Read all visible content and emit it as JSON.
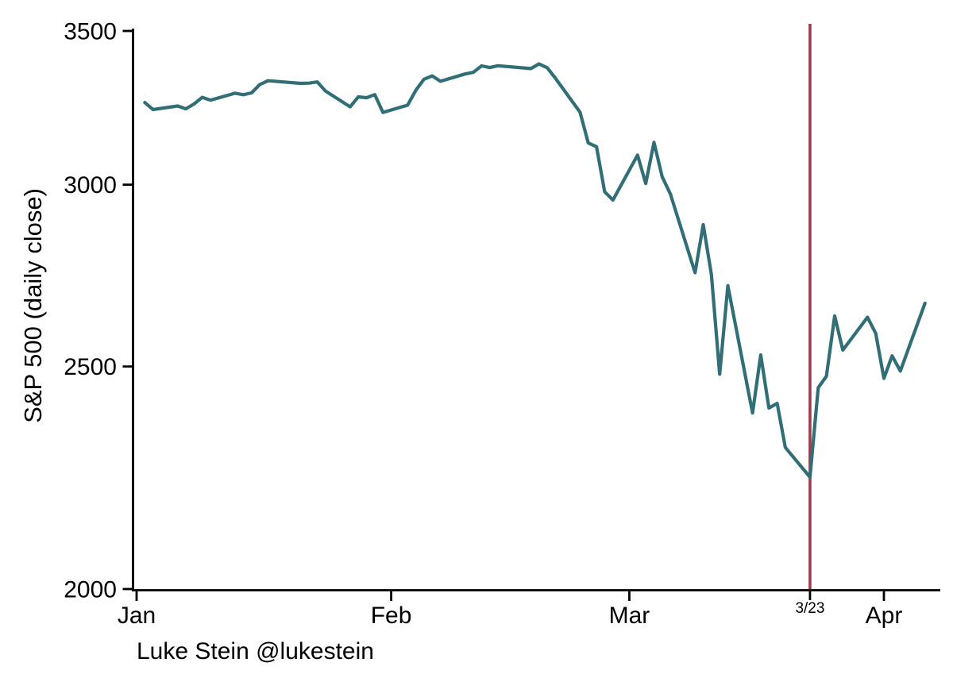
{
  "figure": {
    "background": "#ffffff",
    "attribution": "Luke Stein @lukestein"
  },
  "chart_data": {
    "type": "line",
    "title": "",
    "xlabel": "",
    "ylabel": "S&P 500 (daily close)",
    "y_scale": "log",
    "ylim": [
      2000,
      3500
    ],
    "y_ticks": [
      3500,
      3000,
      2500,
      2000
    ],
    "x_ticks": [
      {
        "label": "Jan",
        "date": "1/1"
      },
      {
        "label": "Feb",
        "date": "2/1"
      },
      {
        "label": "Mar",
        "date": "3/1"
      },
      {
        "label": "Apr",
        "date": "4/1"
      }
    ],
    "event_line": {
      "label": "3/23",
      "date": "3/23",
      "color": "#a13a4b"
    },
    "line_color": "#316e76",
    "axis_color": "#000000",
    "grid": false,
    "legend": "none",
    "series": [
      {
        "name": "S&P 500 daily close",
        "dates": [
          "1/2",
          "1/3",
          "1/6",
          "1/7",
          "1/8",
          "1/9",
          "1/10",
          "1/13",
          "1/14",
          "1/15",
          "1/16",
          "1/17",
          "1/21",
          "1/22",
          "1/23",
          "1/24",
          "1/27",
          "1/28",
          "1/29",
          "1/30",
          "1/31",
          "2/3",
          "2/4",
          "2/5",
          "2/6",
          "2/7",
          "2/10",
          "2/11",
          "2/12",
          "2/13",
          "2/14",
          "2/18",
          "2/19",
          "2/20",
          "2/21",
          "2/24",
          "2/25",
          "2/26",
          "2/27",
          "2/28",
          "3/2",
          "3/3",
          "3/4",
          "3/5",
          "3/6",
          "3/9",
          "3/10",
          "3/11",
          "3/12",
          "3/13",
          "3/16",
          "3/17",
          "3/18",
          "3/19",
          "3/20",
          "3/23",
          "3/24",
          "3/25",
          "3/26",
          "3/27",
          "3/30",
          "3/31",
          "4/1",
          "4/2",
          "4/3",
          "4/6"
        ],
        "closes": [
          3257.85,
          3234.85,
          3246.28,
          3237.18,
          3253.05,
          3274.7,
          3265.35,
          3288.13,
          3283.15,
          3289.29,
          3316.81,
          3329.62,
          3320.79,
          3321.75,
          3325.54,
          3295.47,
          3243.63,
          3276.24,
          3273.4,
          3283.66,
          3225.52,
          3248.92,
          3297.59,
          3334.69,
          3345.78,
          3327.71,
          3352.09,
          3357.75,
          3379.45,
          3373.94,
          3380.16,
          3370.29,
          3386.15,
          3373.23,
          3337.75,
          3225.89,
          3128.21,
          3116.39,
          2978.76,
          2954.22,
          3090.23,
          3003.37,
          3130.12,
          3023.94,
          2972.37,
          2746.56,
          2882.23,
          2741.38,
          2480.64,
          2711.02,
          2386.13,
          2529.19,
          2398.1,
          2409.39,
          2304.92,
          2237.4,
          2447.33,
          2475.56,
          2630.07,
          2541.47,
          2626.65,
          2584.59,
          2470.5,
          2526.9,
          2488.65,
          2663.68
        ]
      }
    ]
  }
}
